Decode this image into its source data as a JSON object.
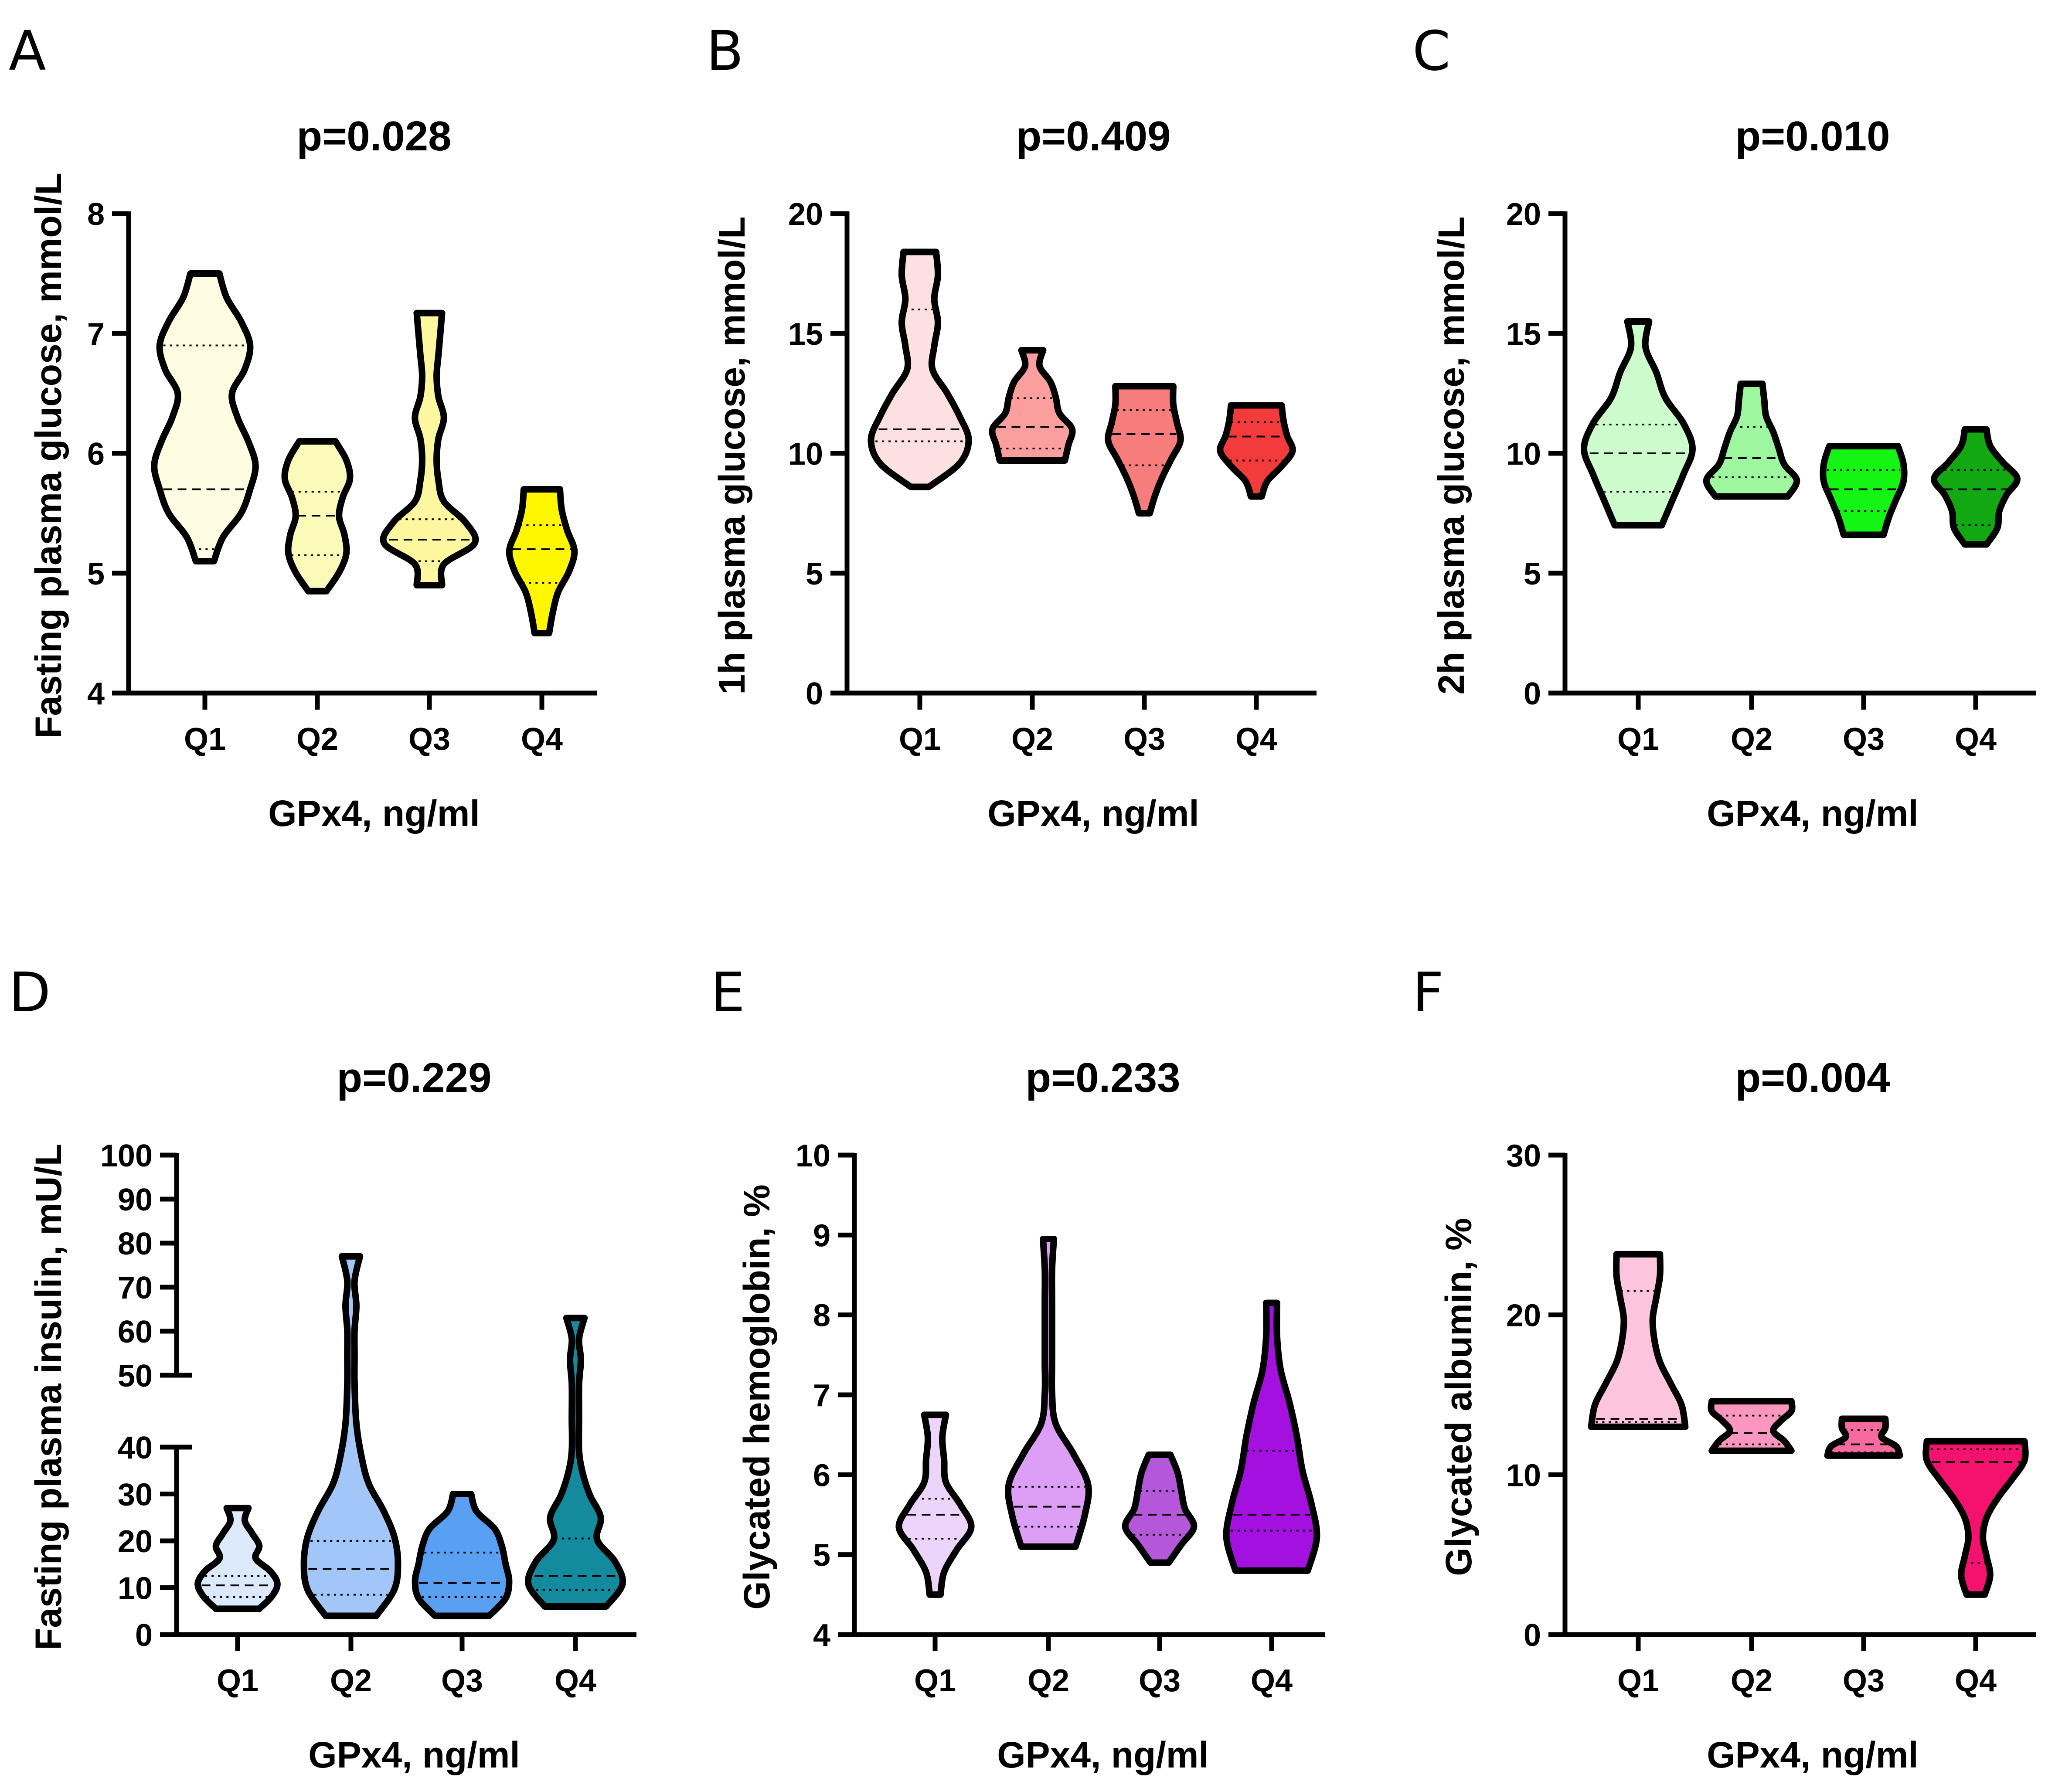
{
  "chart_data": [
    {
      "type": "violin",
      "panel": "A",
      "title": "p=0.028",
      "xlabel": "GPx4, ng/ml",
      "ylabel": "Fasting plasma glucose, mmol/L",
      "ylim": [
        4,
        8
      ],
      "yticks": [
        4,
        5,
        6,
        7,
        8
      ],
      "categories": [
        "Q1",
        "Q2",
        "Q3",
        "Q4"
      ],
      "colors": [
        "#fefde2",
        "#fcfab8",
        "#fdf7a0",
        "#fff700"
      ],
      "groups": [
        {
          "category": "Q1",
          "min": 5.1,
          "max": 7.5,
          "q1": 5.2,
          "median": 5.7,
          "q3": 6.9,
          "width": [
            0.05,
            0.1,
            0.2,
            0.25,
            0.28,
            0.24,
            0.18,
            0.15,
            0.22,
            0.25,
            0.2,
            0.12,
            0.08
          ]
        },
        {
          "category": "Q2",
          "min": 4.85,
          "max": 6.1,
          "q1": 5.15,
          "median": 5.48,
          "q3": 5.68,
          "width": [
            0.05,
            0.12,
            0.16,
            0.15,
            0.12,
            0.14,
            0.18,
            0.16,
            0.1
          ]
        },
        {
          "category": "Q3",
          "min": 4.9,
          "max": 7.17,
          "q1": 5.1,
          "median": 5.28,
          "q3": 5.45,
          "width": [
            0.07,
            0.08,
            0.25,
            0.2,
            0.08,
            0.05,
            0.04,
            0.05,
            0.08,
            0.05,
            0.04,
            0.05,
            0.06,
            0.07
          ]
        },
        {
          "category": "Q4",
          "min": 4.5,
          "max": 5.7,
          "q1": 4.92,
          "median": 5.2,
          "q3": 5.4,
          "width": [
            0.04,
            0.06,
            0.09,
            0.15,
            0.18,
            0.14,
            0.11,
            0.1
          ]
        }
      ]
    },
    {
      "type": "violin",
      "panel": "B",
      "title": "p=0.409",
      "xlabel": "GPx4, ng/ml",
      "ylabel": "1h plasma glucose, mmol/L",
      "ylim": [
        0,
        20
      ],
      "yticks": [
        0,
        5,
        10,
        15,
        20
      ],
      "categories": [
        "Q1",
        "Q2",
        "Q3",
        "Q4"
      ],
      "colors": [
        "#fde0e0",
        "#fa9e9e",
        "#f77c7c",
        "#f43b3b"
      ],
      "groups": [
        {
          "category": "Q1",
          "min": 8.6,
          "max": 18.4,
          "q1": 10.5,
          "median": 11.0,
          "q3": 16.0,
          "width": [
            0.05,
            0.22,
            0.27,
            0.22,
            0.15,
            0.07,
            0.08,
            0.1,
            0.08,
            0.1,
            0.09
          ]
        },
        {
          "category": "Q2",
          "min": 9.7,
          "max": 14.3,
          "q1": 10.2,
          "median": 11.1,
          "q3": 12.3,
          "width": [
            0.18,
            0.2,
            0.22,
            0.15,
            0.13,
            0.1,
            0.04,
            0.06
          ]
        },
        {
          "category": "Q3",
          "min": 7.5,
          "max": 12.8,
          "q1": 9.5,
          "median": 10.8,
          "q3": 11.8,
          "width": [
            0.03,
            0.06,
            0.1,
            0.15,
            0.2,
            0.18,
            0.16,
            0.16
          ]
        },
        {
          "category": "Q4",
          "min": 8.2,
          "max": 12.0,
          "q1": 9.7,
          "median": 10.7,
          "q3": 11.3,
          "width": [
            0.03,
            0.06,
            0.14,
            0.2,
            0.17,
            0.15,
            0.14
          ]
        }
      ]
    },
    {
      "type": "violin",
      "panel": "C",
      "title": "p=0.010",
      "xlabel": "GPx4, ng/ml",
      "ylabel": "2h plasma glucose, mmol/L",
      "ylim": [
        0,
        20
      ],
      "yticks": [
        0,
        5,
        10,
        15,
        20
      ],
      "categories": [
        "Q1",
        "Q2",
        "Q3",
        "Q4"
      ],
      "colors": [
        "#ccfccc",
        "#9ef79e",
        "#14f514",
        "#12a812"
      ],
      "groups": [
        {
          "category": "Q1",
          "min": 7.0,
          "max": 15.5,
          "q1": 8.4,
          "median": 10.0,
          "q3": 11.2,
          "width": [
            0.13,
            0.19,
            0.25,
            0.3,
            0.25,
            0.15,
            0.1,
            0.04,
            0.06
          ]
        },
        {
          "category": "Q2",
          "min": 8.2,
          "max": 12.9,
          "q1": 9.0,
          "median": 9.8,
          "q3": 11.1,
          "width": [
            0.2,
            0.25,
            0.18,
            0.15,
            0.12,
            0.08,
            0.07,
            0.06
          ]
        },
        {
          "category": "Q3",
          "min": 6.6,
          "max": 10.3,
          "q1": 7.6,
          "median": 8.5,
          "q3": 9.3,
          "width": [
            0.11,
            0.14,
            0.18,
            0.22,
            0.22,
            0.19
          ]
        },
        {
          "category": "Q4",
          "min": 6.2,
          "max": 11.0,
          "q1": 7.0,
          "median": 8.5,
          "q3": 9.3,
          "width": [
            0.06,
            0.12,
            0.13,
            0.17,
            0.23,
            0.15,
            0.08,
            0.06
          ]
        }
      ]
    },
    {
      "type": "violin",
      "panel": "D",
      "title": "p=0.229",
      "xlabel": "GPx4, ng/ml",
      "ylabel": "Fasting plasma insulin, mU/L",
      "yaxis_break": [
        40,
        50
      ],
      "ylim": [
        0,
        100
      ],
      "yticks": [
        0,
        10,
        20,
        30,
        40,
        50,
        60,
        70,
        80,
        90,
        100
      ],
      "categories": [
        "Q1",
        "Q2",
        "Q3",
        "Q4"
      ],
      "colors": [
        "#dbe9fb",
        "#a2c6f8",
        "#5aa0f2",
        "#148a9e"
      ],
      "groups": [
        {
          "category": "Q1",
          "min": 5.5,
          "max": 27,
          "q1": 8.0,
          "median": 10.5,
          "q3": 12.5,
          "width": [
            0.12,
            0.19,
            0.22,
            0.18,
            0.1,
            0.12,
            0.08,
            0.04,
            0.06
          ]
        },
        {
          "category": "Q2",
          "min": 4.0,
          "max": 77,
          "q1": 8.5,
          "median": 14.0,
          "q3": 20.0,
          "width": [
            0.14,
            0.24,
            0.26,
            0.24,
            0.18,
            0.1,
            0.06,
            0.03,
            0.02,
            0.02,
            0.02,
            0.03,
            0.02,
            0.05
          ]
        },
        {
          "category": "Q3",
          "min": 4.0,
          "max": 30,
          "q1": 8.0,
          "median": 11.0,
          "q3": 17.5,
          "width": [
            0.15,
            0.24,
            0.26,
            0.24,
            0.22,
            0.18,
            0.08,
            0.05
          ]
        },
        {
          "category": "Q4",
          "min": 6.0,
          "max": 63,
          "q1": 9.5,
          "median": 12.5,
          "q3": 20.5,
          "width": [
            0.17,
            0.26,
            0.22,
            0.12,
            0.14,
            0.08,
            0.04,
            0.02,
            0.02,
            0.02,
            0.03,
            0.02,
            0.05
          ]
        }
      ]
    },
    {
      "type": "violin",
      "panel": "E",
      "title": "p=0.233",
      "xlabel": "GPx4, ng/ml",
      "ylabel": "Glycated hemoglobin, %",
      "ylim": [
        4,
        10
      ],
      "yticks": [
        4,
        5,
        6,
        7,
        8,
        9,
        10
      ],
      "categories": [
        "Q1",
        "Q2",
        "Q3",
        "Q4"
      ],
      "colors": [
        "#edd4fa",
        "#dc9ff5",
        "#b457d9",
        "#a410e0"
      ],
      "groups": [
        {
          "category": "Q1",
          "min": 4.5,
          "max": 6.75,
          "q1": 5.2,
          "median": 5.5,
          "q3": 5.7,
          "width": [
            0.03,
            0.05,
            0.12,
            0.2,
            0.14,
            0.06,
            0.05,
            0.04,
            0.06
          ]
        },
        {
          "category": "Q2",
          "min": 5.1,
          "max": 8.95,
          "q1": 5.35,
          "median": 5.6,
          "q3": 5.85,
          "width": [
            0.15,
            0.2,
            0.22,
            0.14,
            0.04,
            0.02,
            0.02,
            0.02,
            0.02,
            0.02,
            0.03
          ]
        },
        {
          "category": "Q3",
          "min": 4.9,
          "max": 6.25,
          "q1": 5.25,
          "median": 5.5,
          "q3": 5.8,
          "width": [
            0.05,
            0.12,
            0.19,
            0.14,
            0.12,
            0.1,
            0.06
          ]
        },
        {
          "category": "Q4",
          "min": 4.8,
          "max": 8.15,
          "q1": 5.3,
          "median": 5.5,
          "q3": 6.3,
          "width": [
            0.2,
            0.25,
            0.22,
            0.17,
            0.14,
            0.1,
            0.05,
            0.03,
            0.03
          ]
        }
      ]
    },
    {
      "type": "violin",
      "panel": "F",
      "title": "p=0.004",
      "xlabel": "GPx4, ng/ml",
      "ylabel": "Glycated albumin, %",
      "ylim": [
        0,
        30
      ],
      "yticks": [
        0,
        10,
        20,
        30
      ],
      "categories": [
        "Q1",
        "Q2",
        "Q3",
        "Q4"
      ],
      "colors": [
        "#fdc4dd",
        "#fa96c0",
        "#f76a9f",
        "#f5116e"
      ],
      "groups": [
        {
          "category": "Q1",
          "min": 13.0,
          "max": 23.8,
          "q1": 13.3,
          "median": 13.5,
          "q3": 21.5,
          "width": [
            0.26,
            0.24,
            0.18,
            0.12,
            0.09,
            0.08,
            0.1,
            0.12,
            0.12
          ]
        },
        {
          "category": "Q2",
          "min": 11.5,
          "max": 14.6,
          "q1": 11.9,
          "median": 12.6,
          "q3": 13.7,
          "width": [
            0.22,
            0.18,
            0.12,
            0.16,
            0.22,
            0.22
          ]
        },
        {
          "category": "Q3",
          "min": 11.2,
          "max": 13.5,
          "q1": 11.4,
          "median": 11.9,
          "q3": 12.8,
          "width": [
            0.2,
            0.18,
            0.1,
            0.12,
            0.12
          ]
        },
        {
          "category": "Q4",
          "min": 2.5,
          "max": 12.1,
          "q1": 4.5,
          "median": 10.8,
          "q3": 11.6,
          "width": [
            0.05,
            0.08,
            0.06,
            0.04,
            0.06,
            0.12,
            0.2,
            0.27,
            0.27
          ]
        }
      ]
    }
  ]
}
